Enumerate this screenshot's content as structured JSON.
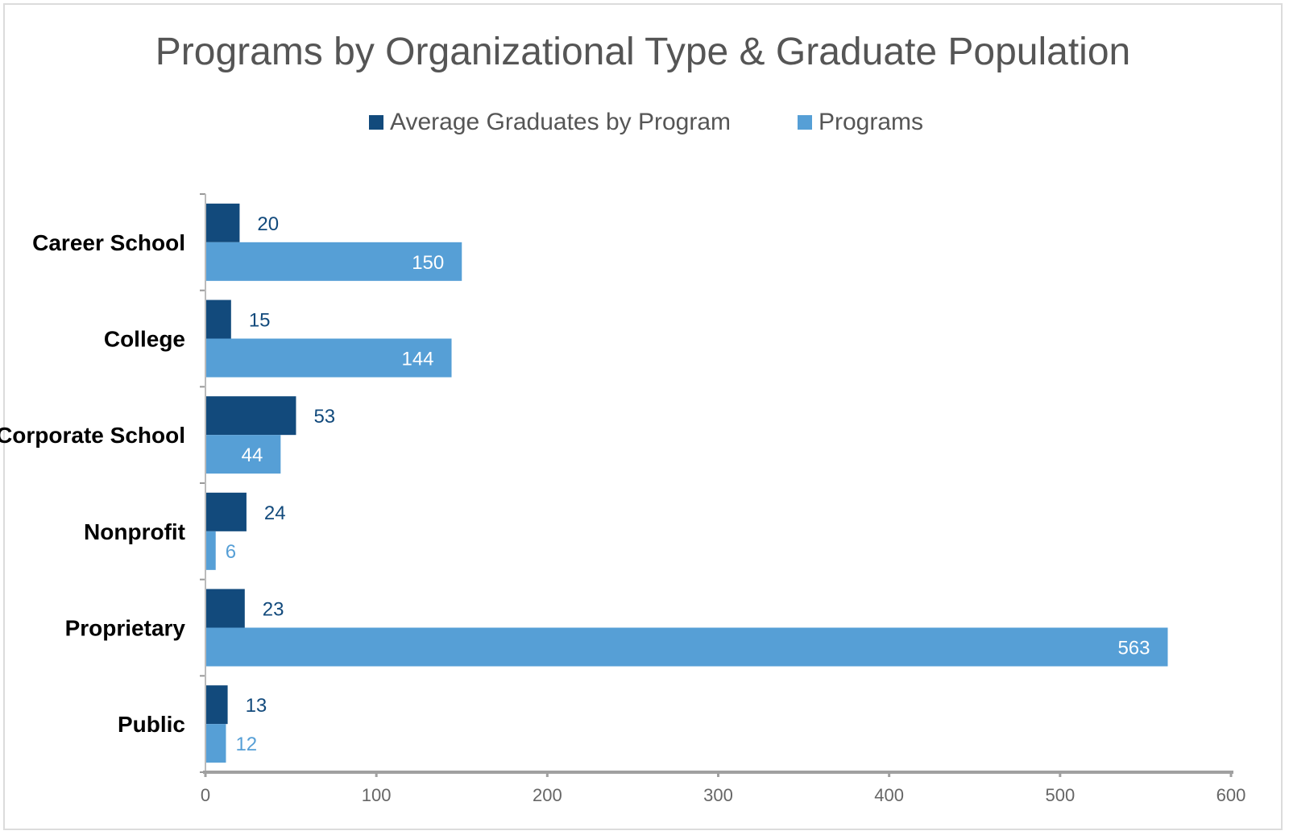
{
  "chart_data": {
    "type": "bar",
    "orientation": "horizontal",
    "title": "Programs by Organizational Type & Graduate Population",
    "categories": [
      "Career School",
      "College",
      "Corporate School",
      "Nonprofit",
      "Proprietary",
      "Public"
    ],
    "series": [
      {
        "name": "Average Graduates by Program",
        "values": [
          20,
          15,
          53,
          24,
          23,
          13
        ],
        "color": "#124a7c"
      },
      {
        "name": "Programs",
        "values": [
          150,
          144,
          44,
          6,
          563,
          12
        ],
        "color": "#569fd6"
      }
    ],
    "xlim": [
      0,
      600
    ],
    "xticks": [
      "0",
      "100",
      "200",
      "300",
      "400",
      "500",
      "600"
    ],
    "xlabel": "",
    "ylabel": "",
    "grid": false,
    "legend_position": "top",
    "data_labels": true
  }
}
